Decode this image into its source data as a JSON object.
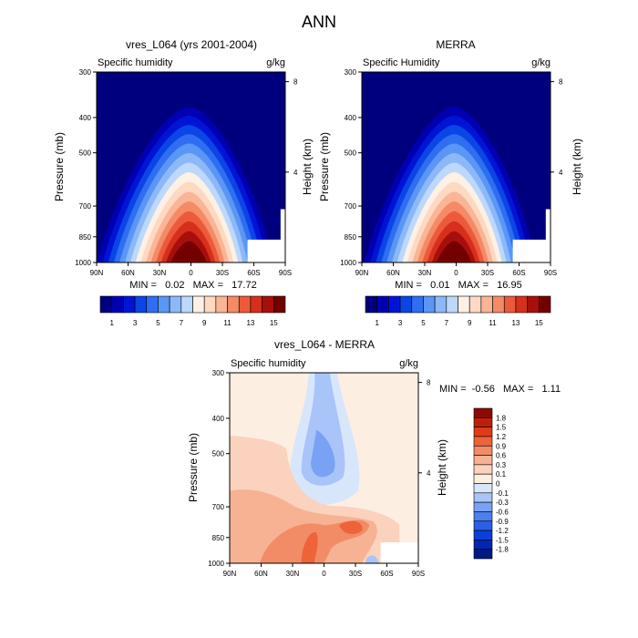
{
  "page_title": "ANN",
  "colors": {
    "full_scale": [
      "#00007f",
      "#0000b2",
      "#0014d6",
      "#0a46e6",
      "#2f6ef0",
      "#5a96f5",
      "#8cb8f8",
      "#bcd8fa",
      "#fdf0e4",
      "#fdd9c2",
      "#f9b595",
      "#f48a66",
      "#ec5a3b",
      "#d6301d",
      "#a80f0c",
      "#730000"
    ],
    "diff_scale": [
      "#001a80",
      "#0026b3",
      "#0a3fd9",
      "#2a5fe6",
      "#4b80ef",
      "#7aa2f4",
      "#a9c4f8",
      "#d7e6fb",
      "#fdeee2",
      "#fad2bd",
      "#f6b293",
      "#f28c66",
      "#ec6438",
      "#de3c18",
      "#bf1f0a",
      "#8c0a04"
    ]
  },
  "chart_data": [
    {
      "type": "heatmap",
      "title": "vres_L064 (yrs 2001-2004)",
      "left_label": "Specific humidity",
      "right_label": "g/kg",
      "xlabel": "",
      "ylabel": "Pressure (mb)",
      "ylabel_right": "Height (km)",
      "x_ticks": [
        "90N",
        "60N",
        "30N",
        "0",
        "30S",
        "60S",
        "90S"
      ],
      "y_ticks": [
        "300",
        "400",
        "500",
        "700",
        "850",
        "1000"
      ],
      "height_ticks": [
        "8",
        "4"
      ],
      "stats": "MIN =   0.02   MAX =   17.72",
      "colorbar_labels": [
        "1",
        "3",
        "5",
        "7",
        "9",
        "11",
        "13",
        "15"
      ],
      "ylim": [
        1000,
        300
      ],
      "xlim": [
        "90N",
        "90S"
      ],
      "peak_value": 17.72,
      "min_value": 0.02
    },
    {
      "type": "heatmap",
      "title": "MERRA",
      "left_label": "Specific Humidity",
      "right_label": "g/kg",
      "xlabel": "",
      "ylabel": "Pressure (mb)",
      "ylabel_right": "Height (km)",
      "x_ticks": [
        "90N",
        "60N",
        "30N",
        "0",
        "30S",
        "60S",
        "90S"
      ],
      "y_ticks": [
        "300",
        "400",
        "500",
        "700",
        "850",
        "1000"
      ],
      "height_ticks": [
        "8",
        "4"
      ],
      "stats": "MIN =   0.01   MAX =   16.95",
      "colorbar_labels": [
        "1",
        "3",
        "5",
        "7",
        "9",
        "11",
        "13",
        "15"
      ],
      "ylim": [
        1000,
        300
      ],
      "xlim": [
        "90N",
        "90S"
      ],
      "peak_value": 16.95,
      "min_value": 0.01
    },
    {
      "type": "heatmap",
      "title": "vres_L064 - MERRA",
      "left_label": "Specific humidity",
      "right_label": "g/kg",
      "xlabel": "",
      "ylabel": "Pressure (mb)",
      "ylabel_right": "Height (km)",
      "x_ticks": [
        "90N",
        "60N",
        "30N",
        "0",
        "30S",
        "60S",
        "90S"
      ],
      "y_ticks": [
        "300",
        "400",
        "500",
        "700",
        "850",
        "1000"
      ],
      "height_ticks": [
        "8",
        "4"
      ],
      "stats": "MIN =  -0.56   MAX =   1.11",
      "colorbar_labels": [
        "1.8",
        "1.5",
        "1.2",
        "0.9",
        "0.6",
        "0.3",
        "0.1",
        "0",
        "-0.1",
        "-0.3",
        "-0.6",
        "-0.9",
        "-1.2",
        "-1.5",
        "-1.8"
      ],
      "ylim": [
        1000,
        300
      ],
      "xlim": [
        "90N",
        "90S"
      ],
      "min_value": -0.56,
      "max_value": 1.11
    }
  ]
}
